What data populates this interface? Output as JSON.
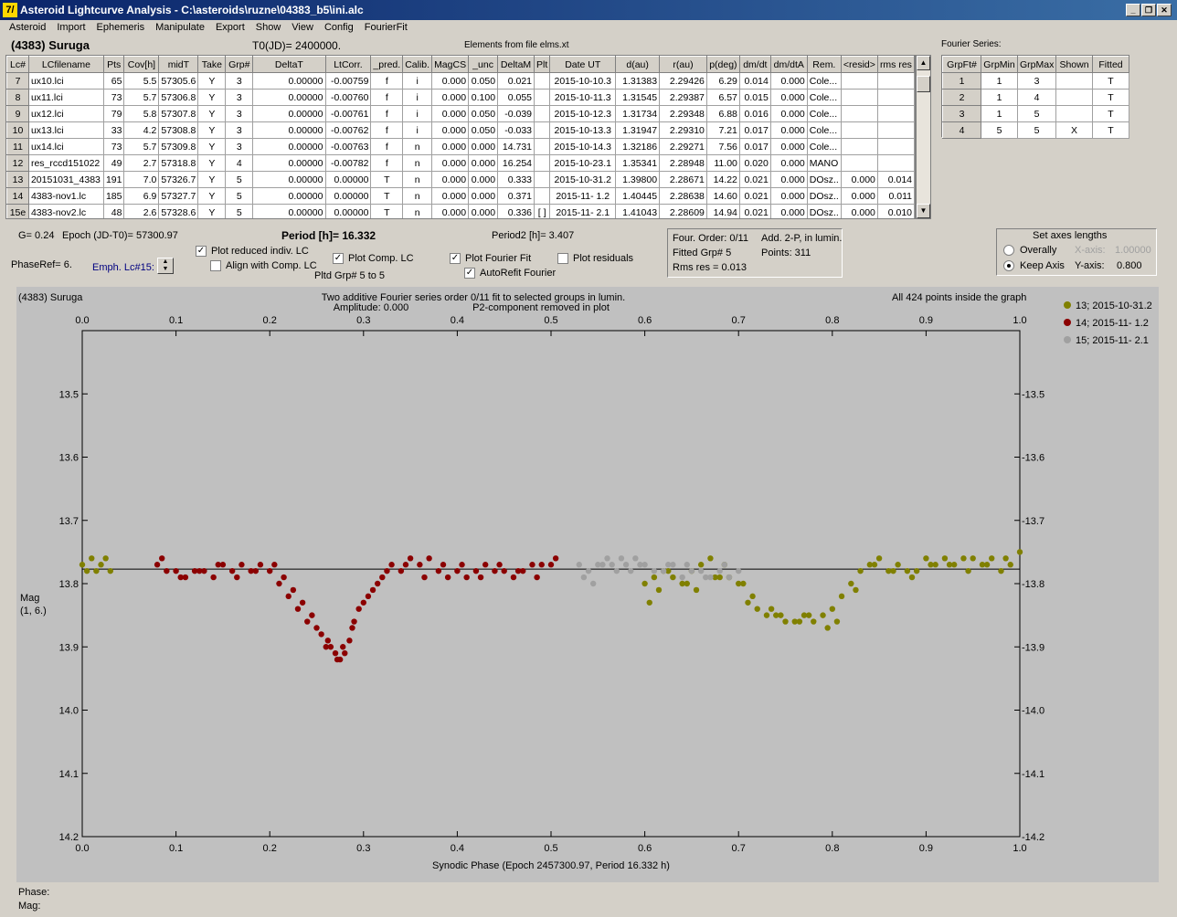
{
  "window": {
    "title": "Asteroid Lightcurve Analysis - C:\\asteroids\\ruzne\\04383_b5\\ini.alc",
    "icon": "7/"
  },
  "menu": [
    "Asteroid",
    "Import",
    "Ephemeris",
    "Manipulate",
    "Export",
    "Show",
    "View",
    "Config",
    "FourierFit"
  ],
  "header": {
    "asteroid": "(4383) Suruga",
    "t0": "T0(JD)= 2400000.",
    "elements": "Elements from file elms.xt",
    "fourier_label": "Fourier Series:"
  },
  "lc_table": {
    "columns": [
      "Lc#",
      "LCfilename",
      "Pts",
      "Cov[h]",
      "midT",
      "Take",
      "Grp#",
      "DeltaT",
      "LtCorr.",
      "_pred.",
      "Calib.",
      "MagCS",
      "_unc",
      "DeltaM",
      "Plt",
      "Date UT",
      "d(au)",
      "r(au)",
      "p(deg)",
      "dm/dt",
      "dm/dtA",
      "Rem.",
      "<resid>",
      "rms res"
    ],
    "rows": [
      [
        "7",
        "ux10.lci",
        "65",
        "5.5",
        "57305.6",
        "Y",
        "3",
        "0.00000",
        "-0.00759",
        "f",
        "i",
        "0.000",
        "0.050",
        "0.021",
        "",
        "2015-10-10.3",
        "1.31383",
        "2.29426",
        "6.29",
        "0.014",
        "0.000",
        "Cole...",
        "",
        ""
      ],
      [
        "8",
        "ux11.lci",
        "73",
        "5.7",
        "57306.8",
        "Y",
        "3",
        "0.00000",
        "-0.00760",
        "f",
        "i",
        "0.000",
        "0.100",
        "0.055",
        "",
        "2015-10-11.3",
        "1.31545",
        "2.29387",
        "6.57",
        "0.015",
        "0.000",
        "Cole...",
        "",
        ""
      ],
      [
        "9",
        "ux12.lci",
        "79",
        "5.8",
        "57307.8",
        "Y",
        "3",
        "0.00000",
        "-0.00761",
        "f",
        "i",
        "0.000",
        "0.050",
        "-0.039",
        "",
        "2015-10-12.3",
        "1.31734",
        "2.29348",
        "6.88",
        "0.016",
        "0.000",
        "Cole...",
        "",
        ""
      ],
      [
        "10",
        "ux13.lci",
        "33",
        "4.2",
        "57308.8",
        "Y",
        "3",
        "0.00000",
        "-0.00762",
        "f",
        "i",
        "0.000",
        "0.050",
        "-0.033",
        "",
        "2015-10-13.3",
        "1.31947",
        "2.29310",
        "7.21",
        "0.017",
        "0.000",
        "Cole...",
        "",
        ""
      ],
      [
        "11",
        "ux14.lci",
        "73",
        "5.7",
        "57309.8",
        "Y",
        "3",
        "0.00000",
        "-0.00763",
        "f",
        "n",
        "0.000",
        "0.000",
        "14.731",
        "",
        "2015-10-14.3",
        "1.32186",
        "2.29271",
        "7.56",
        "0.017",
        "0.000",
        "Cole...",
        "",
        ""
      ],
      [
        "12",
        "res_rccd151022",
        "49",
        "2.7",
        "57318.8",
        "Y",
        "4",
        "0.00000",
        "-0.00782",
        "f",
        "n",
        "0.000",
        "0.000",
        "16.254",
        "",
        "2015-10-23.1",
        "1.35341",
        "2.28948",
        "11.00",
        "0.020",
        "0.000",
        "MANO",
        "",
        ""
      ],
      [
        "13",
        "20151031_4383",
        "191",
        "7.0",
        "57326.7",
        "Y",
        "5",
        "0.00000",
        "0.00000",
        "T",
        "n",
        "0.000",
        "0.000",
        "0.333",
        "",
        "2015-10-31.2",
        "1.39800",
        "2.28671",
        "14.22",
        "0.021",
        "0.000",
        "DOsz..",
        "0.000",
        "0.014"
      ],
      [
        "14",
        "4383-nov1.lc",
        "185",
        "6.9",
        "57327.7",
        "Y",
        "5",
        "0.00000",
        "0.00000",
        "T",
        "n",
        "0.000",
        "0.000",
        "0.371",
        "",
        "2015-11- 1.2",
        "1.40445",
        "2.28638",
        "14.60",
        "0.021",
        "0.000",
        "DOsz..",
        "0.000",
        "0.011"
      ],
      [
        "15e",
        "4383-nov2.lc",
        "48",
        "2.6",
        "57328.6",
        "Y",
        "5",
        "0.00000",
        "0.00000",
        "T",
        "n",
        "0.000",
        "0.000",
        "0.336",
        "[ ]",
        "2015-11- 2.1",
        "1.41043",
        "2.28609",
        "14.94",
        "0.021",
        "0.000",
        "DOsz..",
        "0.000",
        "0.010"
      ]
    ]
  },
  "fs_table": {
    "columns": [
      "GrpFt#",
      "GrpMin",
      "GrpMax",
      "Shown",
      "Fitted"
    ],
    "rows": [
      [
        "1",
        "1",
        "3",
        "",
        "T"
      ],
      [
        "2",
        "1",
        "4",
        "",
        "T"
      ],
      [
        "3",
        "1",
        "5",
        "",
        "T"
      ],
      [
        "4",
        "5",
        "5",
        "X",
        "T"
      ]
    ]
  },
  "controls": {
    "g": "G= 0.24",
    "epoch": "Epoch (JD-T0)= 57300.97",
    "period": "Period [h]= 16.332",
    "period2": "Period2 [h]= 3.407",
    "phaseref": "PhaseRef= 6.",
    "emph": "Emph. Lc#15:",
    "plot_reduced": "Plot reduced indiv. LC",
    "align": "Align with Comp. LC",
    "plot_comp": "Plot Comp. LC",
    "pltd_grp": "Pltd Grp#  5  to   5",
    "plot_fourier": "Plot Fourier Fit",
    "autorefit": "AutoRefit Fourier",
    "plot_resid": "Plot residuals",
    "four_order": "Four. Order:  0/11",
    "add2p": "Add. 2-P, in lumin.",
    "fitted_grp": "Fitted Grp# 5",
    "points": "Points: 311",
    "rms": "Rms res     = 0.013",
    "axes_title": "Set axes lengths",
    "overally": "Overally",
    "keep_axis": "Keep Axis",
    "xaxis_lbl": "X-axis:",
    "xaxis_val": "1.00000",
    "yaxis_lbl": "Y-axis:",
    "yaxis_val": "0.800"
  },
  "chart_data": {
    "type": "scatter",
    "title_left": "(4383) Suruga",
    "title": "Two additive Fourier series order 0/11 fit to selected groups in lumin.",
    "subtitle_left": "Amplitude: 0.000",
    "subtitle_right": "P2-component removed in plot",
    "title_right": "All 424 points inside the graph",
    "xlabel": "Synodic Phase (Epoch 2457300.97, Period 16.332 h)",
    "ylabel": "Mag",
    "ylabel2": "(1, 6.)",
    "xlim": [
      0,
      1
    ],
    "ylim": [
      14.2,
      13.4
    ],
    "xticks": [
      "0.0",
      "0.1",
      "0.2",
      "0.3",
      "0.4",
      "0.5",
      "0.6",
      "0.7",
      "0.8",
      "0.9",
      "1.0"
    ],
    "yticks": [
      "13.5",
      "13.6",
      "13.7",
      "13.8",
      "13.9",
      "14.0",
      "14.1",
      "14.2"
    ],
    "fit_line": 13.777,
    "series": [
      {
        "name": "13; 2015-10-31.2",
        "color": "#808000",
        "x": [
          0.0,
          0.005,
          0.01,
          0.015,
          0.02,
          0.025,
          0.03,
          0.6,
          0.61,
          0.62,
          0.63,
          0.64,
          0.65,
          0.66,
          0.67,
          0.68,
          0.69,
          0.7,
          0.71,
          0.72,
          0.73,
          0.74,
          0.75,
          0.76,
          0.77,
          0.78,
          0.79,
          0.8,
          0.81,
          0.82,
          0.83,
          0.84,
          0.85,
          0.86,
          0.87,
          0.88,
          0.89,
          0.9,
          0.91,
          0.92,
          0.93,
          0.94,
          0.95,
          0.96,
          0.97,
          0.98,
          0.99,
          1.0,
          0.605,
          0.615,
          0.625,
          0.645,
          0.655,
          0.675,
          0.685,
          0.705,
          0.715,
          0.735,
          0.745,
          0.765,
          0.775,
          0.795,
          0.805,
          0.825,
          0.845,
          0.865,
          0.885,
          0.905,
          0.925,
          0.945,
          0.965,
          0.985
        ],
        "y": [
          13.77,
          13.78,
          13.76,
          13.78,
          13.77,
          13.76,
          13.78,
          13.8,
          13.79,
          13.78,
          13.79,
          13.8,
          13.78,
          13.77,
          13.76,
          13.79,
          13.79,
          13.8,
          13.83,
          13.84,
          13.85,
          13.85,
          13.86,
          13.86,
          13.85,
          13.86,
          13.85,
          13.84,
          13.82,
          13.8,
          13.78,
          13.77,
          13.76,
          13.78,
          13.77,
          13.78,
          13.78,
          13.76,
          13.77,
          13.76,
          13.77,
          13.76,
          13.76,
          13.77,
          13.76,
          13.78,
          13.77,
          13.75,
          13.83,
          13.81,
          13.78,
          13.8,
          13.81,
          13.79,
          13.77,
          13.8,
          13.82,
          13.84,
          13.85,
          13.86,
          13.85,
          13.87,
          13.86,
          13.81,
          13.77,
          13.78,
          13.79,
          13.77,
          13.77,
          13.78,
          13.77,
          13.76
        ]
      },
      {
        "name": "14; 2015-11- 1.2",
        "color": "#8b0000",
        "x": [
          0.08,
          0.09,
          0.1,
          0.11,
          0.12,
          0.13,
          0.14,
          0.15,
          0.16,
          0.17,
          0.18,
          0.19,
          0.2,
          0.21,
          0.22,
          0.23,
          0.24,
          0.25,
          0.255,
          0.26,
          0.265,
          0.27,
          0.275,
          0.28,
          0.285,
          0.29,
          0.295,
          0.3,
          0.31,
          0.32,
          0.33,
          0.34,
          0.35,
          0.36,
          0.37,
          0.38,
          0.39,
          0.4,
          0.41,
          0.42,
          0.43,
          0.44,
          0.45,
          0.46,
          0.47,
          0.48,
          0.49,
          0.5,
          0.505,
          0.085,
          0.105,
          0.125,
          0.145,
          0.165,
          0.185,
          0.205,
          0.215,
          0.225,
          0.235,
          0.245,
          0.262,
          0.272,
          0.278,
          0.288,
          0.305,
          0.315,
          0.325,
          0.345,
          0.365,
          0.385,
          0.405,
          0.425,
          0.445,
          0.465,
          0.485
        ],
        "y": [
          13.77,
          13.78,
          13.78,
          13.79,
          13.78,
          13.78,
          13.79,
          13.77,
          13.78,
          13.77,
          13.78,
          13.77,
          13.78,
          13.8,
          13.82,
          13.84,
          13.86,
          13.87,
          13.88,
          13.9,
          13.9,
          13.91,
          13.92,
          13.91,
          13.89,
          13.86,
          13.84,
          13.83,
          13.81,
          13.79,
          13.77,
          13.78,
          13.76,
          13.77,
          13.76,
          13.78,
          13.79,
          13.78,
          13.79,
          13.78,
          13.77,
          13.78,
          13.78,
          13.79,
          13.78,
          13.77,
          13.77,
          13.77,
          13.76,
          13.76,
          13.79,
          13.78,
          13.77,
          13.79,
          13.78,
          13.77,
          13.79,
          13.81,
          13.83,
          13.85,
          13.89,
          13.92,
          13.9,
          13.87,
          13.82,
          13.8,
          13.78,
          13.77,
          13.79,
          13.77,
          13.77,
          13.79,
          13.77,
          13.78,
          13.79
        ]
      },
      {
        "name": "15; 2015-11- 2.1",
        "color": "#a0a0a0",
        "x": [
          0.53,
          0.54,
          0.55,
          0.56,
          0.57,
          0.58,
          0.59,
          0.6,
          0.61,
          0.62,
          0.63,
          0.64,
          0.65,
          0.66,
          0.67,
          0.68,
          0.69,
          0.7,
          0.535,
          0.545,
          0.555,
          0.565,
          0.575,
          0.585,
          0.595,
          0.625,
          0.645,
          0.665,
          0.685
        ],
        "y": [
          13.77,
          13.78,
          13.77,
          13.76,
          13.78,
          13.77,
          13.76,
          13.77,
          13.78,
          13.78,
          13.77,
          13.79,
          13.78,
          13.78,
          13.79,
          13.78,
          13.79,
          13.78,
          13.79,
          13.8,
          13.77,
          13.77,
          13.76,
          13.78,
          13.77,
          13.77,
          13.77,
          13.79,
          13.77
        ]
      }
    ]
  },
  "status": {
    "phase": "Phase:",
    "mag": "Mag:"
  }
}
